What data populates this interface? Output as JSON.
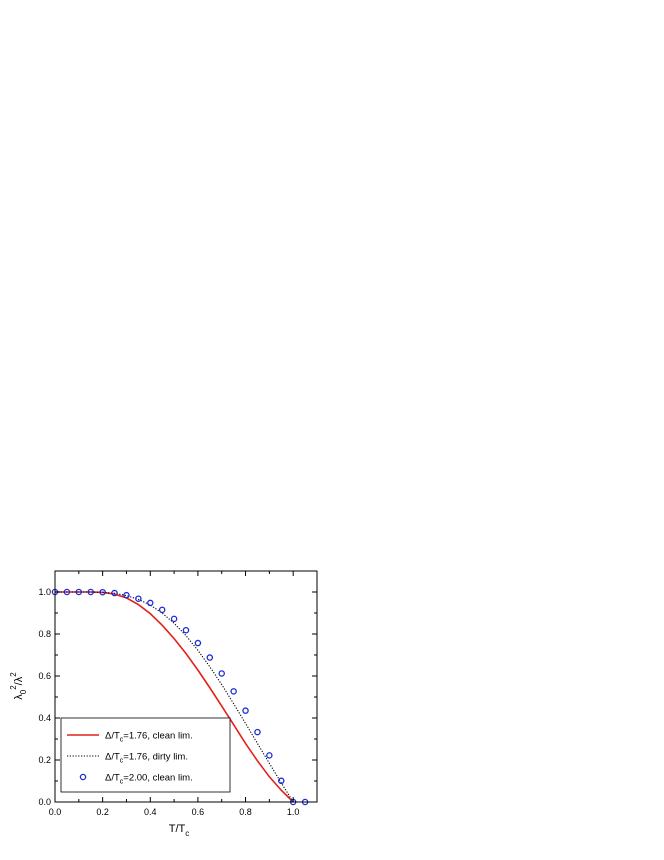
{
  "chart_data": {
    "type": "line",
    "xlabel": "T/T",
    "xlabel_sub": "c",
    "ylabel_parts": {
      "base": "λ",
      "sub": "0",
      "sup": "2",
      "rest": "/λ",
      "sup2": "2"
    },
    "xlim": [
      0.0,
      1.1
    ],
    "ylim": [
      0.0,
      1.1
    ],
    "xticks": [
      "0.0",
      "0.2",
      "0.4",
      "0.6",
      "0.8",
      "1.0"
    ],
    "yticks": [
      "0.0",
      "0.2",
      "0.4",
      "0.6",
      "0.8",
      "1.0"
    ],
    "legend_position": "bottom-left",
    "series": [
      {
        "name": "Δ/T=1.76, clean lim.",
        "name_parts": {
          "pre": "Δ/T",
          "sub": "c",
          "post": "=1.76, clean lim."
        },
        "style": "solid",
        "color": "#e32119",
        "x": [
          0.0,
          0.05,
          0.1,
          0.15,
          0.2,
          0.25,
          0.3,
          0.35,
          0.4,
          0.45,
          0.5,
          0.55,
          0.6,
          0.65,
          0.7,
          0.75,
          0.8,
          0.85,
          0.9,
          0.95,
          1.0
        ],
        "y": [
          1.0,
          1.0,
          1.0,
          1.0,
          0.998,
          0.99,
          0.972,
          0.94,
          0.897,
          0.842,
          0.778,
          0.707,
          0.628,
          0.544,
          0.457,
          0.368,
          0.279,
          0.196,
          0.12,
          0.056,
          0.0
        ]
      },
      {
        "name": "Δ/T=1.76, dirty lim.",
        "name_parts": {
          "pre": "Δ/T",
          "sub": "c",
          "post": "=1.76, dirty lim."
        },
        "style": "dotted",
        "color": "#000000",
        "x": [
          0.0,
          0.05,
          0.1,
          0.15,
          0.2,
          0.25,
          0.3,
          0.35,
          0.4,
          0.45,
          0.5,
          0.55,
          0.6,
          0.65,
          0.7,
          0.75,
          0.8,
          0.85,
          0.9,
          0.95,
          1.0
        ],
        "y": [
          1.0,
          1.0,
          1.0,
          1.0,
          0.999,
          0.994,
          0.983,
          0.965,
          0.938,
          0.9,
          0.851,
          0.792,
          0.722,
          0.644,
          0.559,
          0.468,
          0.374,
          0.279,
          0.184,
          0.091,
          0.0
        ]
      },
      {
        "name": "Δ/T=2.00, clean lim.",
        "name_parts": {
          "pre": "Δ/T",
          "sub": "c",
          "post": "=2.00, clean lim."
        },
        "style": "markers",
        "color": "#1c2bd6",
        "x": [
          0.0,
          0.05,
          0.1,
          0.15,
          0.2,
          0.25,
          0.3,
          0.35,
          0.4,
          0.45,
          0.5,
          0.55,
          0.6,
          0.65,
          0.7,
          0.75,
          0.8,
          0.85,
          0.9,
          0.95,
          1.0,
          1.05
        ],
        "y": [
          1.0,
          1.0,
          1.0,
          1.0,
          0.999,
          0.995,
          0.985,
          0.968,
          0.948,
          0.915,
          0.872,
          0.818,
          0.757,
          0.688,
          0.612,
          0.527,
          0.435,
          0.333,
          0.222,
          0.101,
          0.0,
          0.0
        ]
      }
    ]
  }
}
